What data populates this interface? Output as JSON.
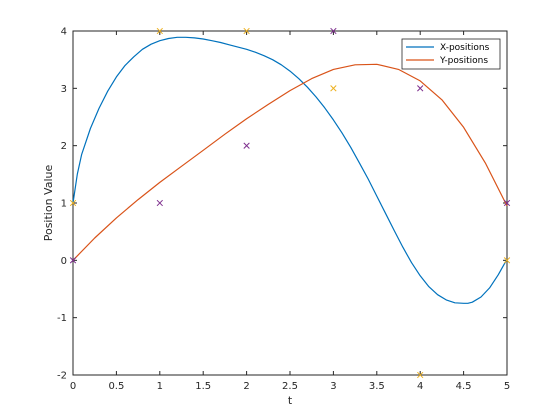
{
  "chart_data": {
    "type": "line",
    "title": "",
    "xlabel": "t",
    "ylabel": "Position Value",
    "xlim": [
      0,
      5
    ],
    "ylim": [
      -2,
      4
    ],
    "xticks": [
      "0",
      "0.5",
      "1",
      "1.5",
      "2",
      "2.5",
      "3",
      "3.5",
      "4",
      "4.5",
      "5"
    ],
    "yticks": [
      "-2",
      "-1",
      "0",
      "1",
      "2",
      "3",
      "4"
    ],
    "grid": false,
    "legend_position": "top-right",
    "series": [
      {
        "name": "X-positions",
        "color": "#0072BD",
        "x": [
          0,
          0.05,
          0.1,
          0.2,
          0.3,
          0.4,
          0.5,
          0.6,
          0.7,
          0.8,
          0.9,
          1.0,
          1.1,
          1.2,
          1.3,
          1.4,
          1.5,
          1.6,
          1.7,
          1.8,
          1.9,
          2.0,
          2.1,
          2.2,
          2.3,
          2.4,
          2.5,
          2.6,
          2.7,
          2.8,
          2.9,
          3.0,
          3.1,
          3.2,
          3.3,
          3.4,
          3.5,
          3.6,
          3.7,
          3.8,
          3.9,
          4.0,
          4.1,
          4.2,
          4.3,
          4.4,
          4.5,
          4.55,
          4.6,
          4.7,
          4.8,
          4.9,
          5.0
        ],
        "y": [
          1.0,
          1.5,
          1.85,
          2.3,
          2.65,
          2.95,
          3.2,
          3.4,
          3.55,
          3.68,
          3.77,
          3.83,
          3.87,
          3.89,
          3.89,
          3.88,
          3.86,
          3.83,
          3.8,
          3.76,
          3.72,
          3.68,
          3.63,
          3.57,
          3.5,
          3.41,
          3.3,
          3.17,
          3.02,
          2.85,
          2.66,
          2.45,
          2.22,
          1.97,
          1.7,
          1.42,
          1.12,
          0.82,
          0.52,
          0.23,
          -0.04,
          -0.27,
          -0.46,
          -0.6,
          -0.69,
          -0.74,
          -0.75,
          -0.75,
          -0.73,
          -0.64,
          -0.48,
          -0.25,
          0.02
        ]
      },
      {
        "name": "Y-positions",
        "color": "#D95319",
        "x": [
          0,
          0.25,
          0.5,
          0.75,
          1.0,
          1.25,
          1.5,
          1.75,
          2.0,
          2.25,
          2.5,
          2.75,
          3.0,
          3.25,
          3.5,
          3.75,
          4.0,
          4.25,
          4.5,
          4.75,
          5.0
        ],
        "y": [
          0.0,
          0.39,
          0.74,
          1.06,
          1.36,
          1.64,
          1.92,
          2.2,
          2.47,
          2.72,
          2.96,
          3.17,
          3.33,
          3.41,
          3.42,
          3.33,
          3.13,
          2.8,
          2.32,
          1.7,
          0.95
        ]
      }
    ],
    "markers": [
      {
        "color": "#7E2F8E",
        "x": [
          0,
          1,
          2,
          3,
          4,
          5
        ],
        "y": [
          0,
          1,
          2,
          4,
          3,
          1
        ]
      },
      {
        "color": "#EDB120",
        "x": [
          0,
          1,
          2,
          3,
          4,
          5
        ],
        "y": [
          1,
          4,
          4,
          3,
          -2,
          0
        ]
      }
    ]
  }
}
